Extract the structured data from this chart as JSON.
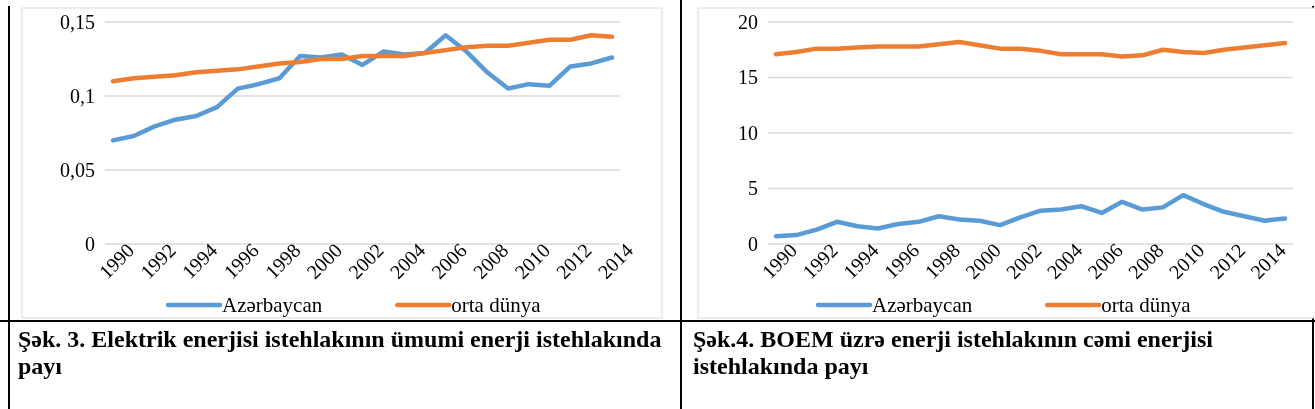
{
  "chart_data": [
    {
      "type": "line",
      "title": "Şək. 3. Elektrik enerjisi istehlakının ümumi enerji istehlakında payı",
      "categories": [
        "1990",
        null,
        "1992",
        null,
        "1994",
        null,
        "1996",
        null,
        "1998",
        null,
        "2000",
        null,
        "2002",
        null,
        "2004",
        null,
        "2006",
        null,
        "2008",
        null,
        "2010",
        null,
        "2012",
        null,
        "2014"
      ],
      "series": [
        {
          "name": "Azərbaycan",
          "color": "#5b9bd5",
          "values": [
            0.07,
            0.073,
            0.0795,
            0.084,
            0.0865,
            0.0925,
            0.105,
            0.108,
            0.112,
            0.127,
            0.126,
            0.128,
            0.121,
            0.13,
            0.128,
            0.129,
            0.141,
            0.13,
            0.116,
            0.105,
            0.108,
            0.107,
            0.12,
            0.122,
            0.126
          ]
        },
        {
          "name": "orta dünya",
          "color": "#ed7d31",
          "values": [
            0.11,
            0.112,
            0.113,
            0.114,
            0.116,
            0.117,
            0.118,
            0.12,
            0.122,
            0.123,
            0.125,
            0.125,
            0.127,
            0.127,
            0.127,
            0.129,
            0.131,
            0.133,
            0.134,
            0.134,
            0.136,
            0.138,
            0.138,
            0.141,
            0.14
          ]
        }
      ],
      "ylim": [
        0,
        0.15
      ],
      "yticks": [
        {
          "value": 0,
          "label": "0"
        },
        {
          "value": 0.05,
          "label": "0,05"
        },
        {
          "value": 0.1,
          "label": "0,1"
        },
        {
          "value": 0.15,
          "label": "0,15"
        }
      ],
      "grid": "y",
      "legend": "bottom",
      "marker": "none",
      "line_style": "solid"
    },
    {
      "type": "line",
      "title": "Şək.4. BOEM üzrə enerji istehlakının  cəmi enerjisi istehlakında payı",
      "categories": [
        "1990",
        null,
        "1992",
        null,
        "1994",
        null,
        "1996",
        null,
        "1998",
        null,
        "2000",
        null,
        "2002",
        null,
        "2004",
        null,
        "2006",
        null,
        "2008",
        null,
        "2010",
        null,
        "2012",
        null,
        "2014",
        null
      ],
      "series": [
        {
          "name": "Azərbaycan",
          "color": "#5b9bd5",
          "values": [
            0.7,
            0.8,
            1.3,
            2.0,
            1.6,
            1.4,
            1.8,
            2.0,
            2.5,
            2.2,
            2.1,
            1.7,
            2.4,
            3.0,
            3.1,
            3.4,
            2.8,
            3.8,
            3.1,
            3.3,
            4.4,
            3.6,
            2.9,
            2.5,
            2.1,
            2.3
          ]
        },
        {
          "name": "orta dünya",
          "color": "#ed7d31",
          "values": [
            17.1,
            17.3,
            17.6,
            17.6,
            17.7,
            17.8,
            17.8,
            17.8,
            18.0,
            18.2,
            17.9,
            17.6,
            17.6,
            17.4,
            17.1,
            17.1,
            17.1,
            16.9,
            17.0,
            17.5,
            17.3,
            17.2,
            17.5,
            17.7,
            17.9,
            18.1
          ]
        }
      ],
      "ylim": [
        0,
        20
      ],
      "yticks": [
        0,
        5,
        10,
        15,
        20
      ],
      "grid": "y",
      "legend": "bottom",
      "marker": "none",
      "line_style": "solid"
    }
  ]
}
